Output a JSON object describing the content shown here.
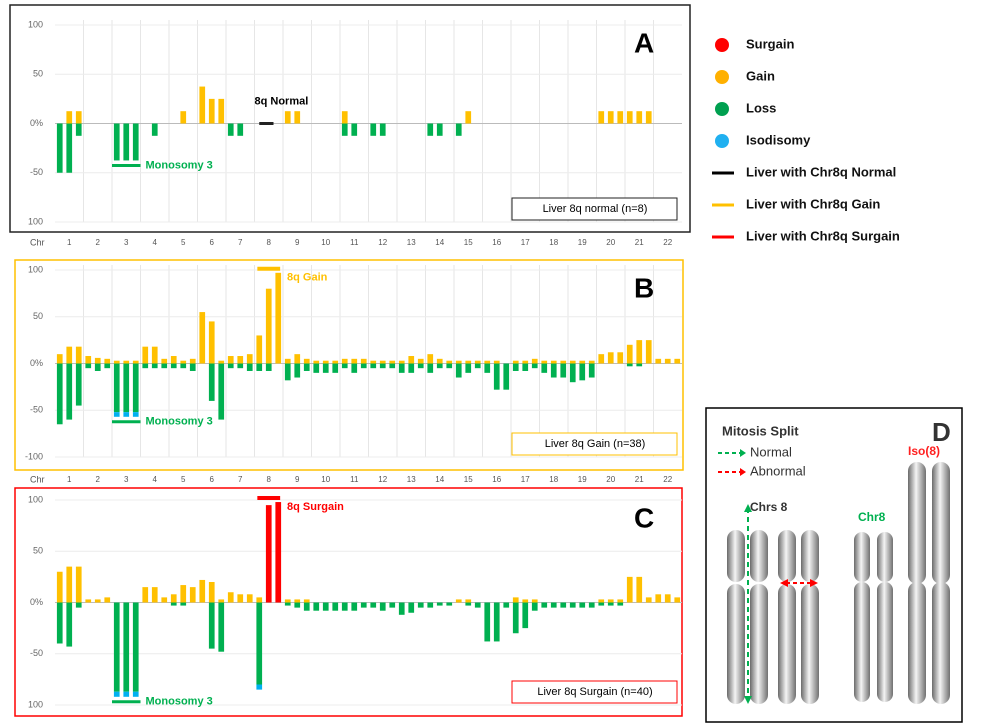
{
  "chart_data": [
    {
      "type": "bar",
      "title": "A",
      "xlabel": "Chr",
      "frame_color": "#222222",
      "categories": [
        null,
        "1",
        null,
        null,
        "2",
        null,
        null,
        "3",
        null,
        null,
        "4",
        null,
        null,
        "5",
        null,
        null,
        "6",
        null,
        null,
        "7",
        null,
        null,
        "8",
        null,
        null,
        "9",
        null,
        null,
        "10",
        null,
        null,
        "11",
        null,
        null,
        "12",
        null,
        null,
        "13",
        null,
        null,
        "14",
        null,
        null,
        "15",
        null,
        null,
        "16",
        null,
        null,
        "17",
        null,
        null,
        "18",
        null,
        null,
        "19",
        null,
        null,
        "20",
        null,
        null,
        "21",
        null,
        null,
        "22",
        null
      ],
      "ylim": [
        -100,
        100
      ],
      "yticks": [
        100,
        50,
        {
          "value": 0,
          "label": "0%"
        },
        -50,
        {
          "value": -100,
          "label": "100"
        }
      ],
      "annotations": {
        "chr8": "8q Normal",
        "chr3": "Monosomy 3",
        "box": "Liver 8q normal (n=8)"
      },
      "series": [
        {
          "name": "Gain",
          "color": "#ffc000",
          "values": [
            0,
            12.5,
            12.5,
            0,
            0,
            0,
            0,
            0,
            0,
            0,
            0,
            0,
            0,
            12.5,
            0,
            37.5,
            25,
            25,
            0,
            0,
            0,
            0,
            0,
            0,
            12.5,
            12.5,
            0,
            0,
            0,
            0,
            12.5,
            0,
            0,
            0,
            0,
            0,
            0,
            0,
            0,
            0,
            0,
            0,
            0,
            12.5,
            0,
            0,
            0,
            0,
            0,
            0,
            0,
            0,
            0,
            0,
            0,
            0,
            0,
            12.5,
            12.5,
            12.5,
            12.5,
            12.5,
            12.5,
            0,
            0,
            0
          ]
        },
        {
          "name": "Loss",
          "color": "#00b050",
          "values": [
            -50,
            -50,
            -12.5,
            0,
            0,
            0,
            -37.5,
            -37.5,
            -37.5,
            0,
            -12.5,
            0,
            0,
            0,
            0,
            0,
            0,
            0,
            -12.5,
            -12.5,
            0,
            0,
            0,
            0,
            0,
            0,
            0,
            0,
            0,
            0,
            -12.5,
            -12.5,
            0,
            -12.5,
            -12.5,
            0,
            0,
            0,
            0,
            -12.5,
            -12.5,
            0,
            -12.5,
            0,
            0,
            0,
            0,
            0,
            0,
            0,
            0,
            0,
            0,
            0,
            0,
            0,
            0,
            0,
            0,
            0,
            0,
            0,
            0,
            0,
            0,
            0
          ]
        }
      ]
    },
    {
      "type": "bar",
      "title": "B",
      "xlabel": "Chr",
      "frame_color": "#ffc000",
      "categories": [
        null,
        "1",
        null,
        null,
        "2",
        null,
        null,
        "3",
        null,
        null,
        "4",
        null,
        null,
        "5",
        null,
        null,
        "6",
        null,
        null,
        "7",
        null,
        null,
        "8",
        null,
        null,
        "9",
        null,
        null,
        "10",
        null,
        null,
        "11",
        null,
        null,
        "12",
        null,
        null,
        "13",
        null,
        null,
        "14",
        null,
        null,
        "15",
        null,
        null,
        "16",
        null,
        null,
        "17",
        null,
        null,
        "18",
        null,
        null,
        "19",
        null,
        null,
        "20",
        null,
        null,
        "21",
        null,
        null,
        "22",
        null
      ],
      "ylim": [
        -100,
        100
      ],
      "yticks": [
        100,
        50,
        {
          "value": 0,
          "label": "0%"
        },
        -50,
        -100
      ],
      "annotations": {
        "chr8": "8q Gain",
        "chr3": "Monosomy 3",
        "box": "Liver 8q Gain (n=38)"
      },
      "series": [
        {
          "name": "Gain",
          "color": "#ffc000",
          "values": [
            10,
            18,
            18,
            8,
            6,
            5,
            3,
            3,
            3,
            18,
            18,
            5,
            8,
            3,
            5,
            55,
            45,
            3,
            8,
            8,
            10,
            30,
            80,
            97,
            5,
            10,
            5,
            3,
            3,
            3,
            5,
            5,
            5,
            3,
            3,
            3,
            3,
            8,
            5,
            10,
            5,
            3,
            3,
            3,
            3,
            3,
            3,
            0,
            3,
            3,
            5,
            3,
            3,
            3,
            3,
            3,
            3,
            10,
            12,
            12,
            20,
            25,
            25,
            5,
            5,
            5
          ]
        },
        {
          "name": "Loss",
          "color": "#00b050",
          "values": [
            -65,
            -60,
            -45,
            -5,
            -8,
            -5,
            -52,
            -52,
            -52,
            -5,
            -5,
            -5,
            -5,
            -5,
            -8,
            0,
            -40,
            -60,
            -5,
            -5,
            -8,
            -8,
            -8,
            0,
            -18,
            -15,
            -8,
            -10,
            -10,
            -10,
            -5,
            -10,
            -5,
            -5,
            -5,
            -5,
            -10,
            -10,
            -5,
            -10,
            -5,
            -5,
            -15,
            -10,
            -5,
            -10,
            -28,
            -28,
            -8,
            -8,
            -5,
            -10,
            -15,
            -15,
            -20,
            -18,
            -15,
            0,
            0,
            0,
            -3,
            -3,
            0,
            0,
            0,
            0
          ]
        },
        {
          "name": "Isodisomy",
          "color": "#00b0f0",
          "values": [
            0,
            0,
            0,
            0,
            0,
            0,
            -5,
            -5,
            -5,
            0,
            0,
            0,
            0,
            0,
            0,
            0,
            0,
            0,
            0,
            0,
            0,
            0,
            0,
            0,
            0,
            0,
            0,
            0,
            0,
            0,
            0,
            0,
            0,
            0,
            0,
            0,
            0,
            0,
            0,
            0,
            0,
            0,
            0,
            0,
            0,
            0,
            0,
            0,
            0,
            0,
            0,
            0,
            0,
            0,
            0,
            0,
            0,
            0,
            0,
            0,
            0,
            0,
            0,
            0,
            0,
            0
          ]
        }
      ]
    },
    {
      "type": "bar",
      "title": "C",
      "frame_color": "#ff0000",
      "ylim": [
        -100,
        100
      ],
      "yticks": [
        100,
        50,
        {
          "value": 0,
          "label": "0%"
        },
        -50,
        {
          "value": -100,
          "label": "100"
        }
      ],
      "annotations": {
        "chr8": "8q Surgain",
        "chr3": "Monosomy 3",
        "box": "Liver 8q Surgain (n=40)"
      },
      "series": [
        {
          "name": "Gain",
          "color": "#ffc000",
          "values": [
            30,
            35,
            35,
            3,
            3,
            5,
            0,
            0,
            0,
            15,
            15,
            5,
            8,
            17,
            15,
            22,
            20,
            3,
            10,
            8,
            8,
            5,
            0,
            0,
            3,
            3,
            3,
            0,
            0,
            0,
            0,
            0,
            0,
            0,
            0,
            0,
            0,
            0,
            0,
            0,
            0,
            0,
            3,
            3,
            0,
            0,
            0,
            0,
            5,
            3,
            3,
            0,
            0,
            0,
            0,
            0,
            0,
            3,
            3,
            3,
            25,
            25,
            5,
            8,
            8,
            5
          ]
        },
        {
          "name": "Surgain",
          "color": "#ff0000",
          "values": [
            0,
            0,
            0,
            0,
            0,
            0,
            0,
            0,
            0,
            0,
            0,
            0,
            0,
            0,
            0,
            0,
            0,
            0,
            0,
            0,
            0,
            0,
            95,
            98,
            0,
            0,
            0,
            0,
            0,
            0,
            0,
            0,
            0,
            0,
            0,
            0,
            0,
            0,
            0,
            0,
            0,
            0,
            0,
            0,
            0,
            0,
            0,
            0,
            0,
            0,
            0,
            0,
            0,
            0,
            0,
            0,
            0,
            0,
            0,
            0,
            0,
            0,
            0,
            0,
            0,
            0
          ]
        },
        {
          "name": "Loss",
          "color": "#00b050",
          "values": [
            -40,
            -43,
            -5,
            0,
            0,
            0,
            -87,
            -87,
            -87,
            0,
            0,
            0,
            -3,
            -3,
            0,
            0,
            -45,
            -48,
            0,
            0,
            0,
            -80,
            0,
            0,
            -3,
            -5,
            -8,
            -8,
            -8,
            -8,
            -8,
            -8,
            -5,
            -5,
            -8,
            -5,
            -12,
            -10,
            -5,
            -5,
            -3,
            -3,
            0,
            -3,
            -5,
            -38,
            -38,
            -5,
            -30,
            -25,
            -8,
            -5,
            -5,
            -5,
            -5,
            -5,
            -5,
            -3,
            -3,
            -3,
            0,
            0,
            0,
            0,
            0,
            0
          ]
        },
        {
          "name": "Isodisomy",
          "color": "#00b0f0",
          "values": [
            0,
            0,
            0,
            0,
            0,
            0,
            -5,
            -5,
            -5,
            0,
            0,
            0,
            0,
            0,
            0,
            0,
            0,
            0,
            0,
            0,
            0,
            -5,
            0,
            0,
            0,
            0,
            0,
            0,
            0,
            0,
            0,
            0,
            0,
            0,
            0,
            0,
            0,
            0,
            0,
            0,
            0,
            0,
            0,
            0,
            0,
            0,
            0,
            0,
            0,
            0,
            0,
            0,
            0,
            0,
            0,
            0,
            0,
            0,
            0,
            0,
            0,
            0,
            0,
            0,
            0,
            0
          ]
        }
      ]
    }
  ],
  "legend": [
    {
      "label": "Surgain",
      "color": "#ff0000",
      "shape": "dot"
    },
    {
      "label": "Gain",
      "color": "#ffb000",
      "shape": "dot"
    },
    {
      "label": "Loss",
      "color": "#00a050",
      "shape": "dot"
    },
    {
      "label": "Isodisomy",
      "color": "#20b0f0",
      "shape": "dot"
    },
    {
      "label": "Liver with Chr8q Normal",
      "color": "#000000",
      "shape": "line"
    },
    {
      "label": "Liver with Chr8q Gain",
      "color": "#ffc000",
      "shape": "line"
    },
    {
      "label": "Liver with Chr8q Surgain",
      "color": "#ff0000",
      "shape": "line"
    }
  ],
  "diagram": {
    "label": "D",
    "title": "Mitosis Split",
    "normal": "Normal",
    "abnormal": "Abnormal",
    "chrs": "Chrs 8",
    "chr8": "Chr8",
    "iso": "Iso(8)"
  }
}
